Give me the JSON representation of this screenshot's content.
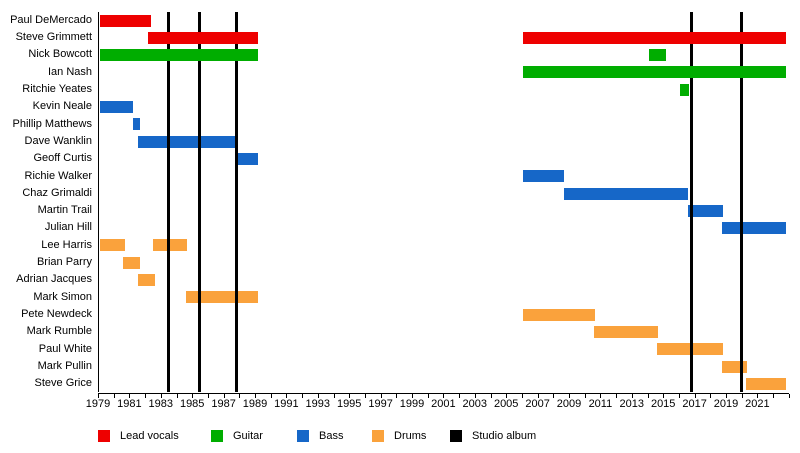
{
  "chart_data": {
    "type": "bar",
    "variant": "band-membership-timeline-gantt",
    "title": "",
    "background": "#ffffff",
    "x_axis": {
      "min": 1979,
      "max": 2023,
      "label_interval": 2,
      "minor_tick_interval": 1,
      "tick_labels": [
        "1979",
        "1981",
        "1983",
        "1985",
        "1987",
        "1989",
        "1991",
        "1993",
        "1995",
        "1997",
        "1999",
        "2001",
        "2003",
        "2005",
        "2007",
        "2009",
        "2011",
        "2013",
        "2015",
        "2017",
        "2019",
        "2021"
      ]
    },
    "legend": [
      {
        "label": "Lead vocals",
        "color": "#EE0000"
      },
      {
        "label": "Guitar",
        "color": "#00AD00"
      },
      {
        "label": "Bass",
        "color": "#1667C8"
      },
      {
        "label": "Drums",
        "color": "#FAA23C"
      },
      {
        "label": "Studio album",
        "color": "#000000"
      }
    ],
    "members": [
      {
        "name": "Paul DeMercado",
        "role": "Lead vocals",
        "periods": [
          [
            1979.15,
            1982.4
          ]
        ]
      },
      {
        "name": "Steve Grimmett",
        "role": "Lead vocals",
        "periods": [
          [
            1982.2,
            1989.2
          ],
          [
            2006.1,
            2022.8
          ]
        ]
      },
      {
        "name": "Nick Bowcott",
        "role": "Guitar",
        "periods": [
          [
            1979.1,
            1989.2
          ],
          [
            2014.1,
            2015.2
          ]
        ]
      },
      {
        "name": "Ian Nash",
        "role": "Guitar",
        "periods": [
          [
            2006.1,
            2022.8
          ]
        ]
      },
      {
        "name": "Ritchie Yeates",
        "role": "Guitar",
        "periods": [
          [
            2016.1,
            2016.65
          ]
        ]
      },
      {
        "name": "Kevin Neale",
        "role": "Bass",
        "periods": [
          [
            1979.1,
            1981.2
          ]
        ]
      },
      {
        "name": "Phillip Matthews",
        "role": "Bass",
        "periods": [
          [
            1981.2,
            1981.7
          ]
        ]
      },
      {
        "name": "Dave Wanklin",
        "role": "Bass",
        "periods": [
          [
            1981.55,
            1987.9
          ]
        ]
      },
      {
        "name": "Geoff Curtis",
        "role": "Bass",
        "periods": [
          [
            1987.9,
            1989.2
          ]
        ]
      },
      {
        "name": "Richie Walker",
        "role": "Bass",
        "periods": [
          [
            2006.1,
            2008.7
          ]
        ]
      },
      {
        "name": "Chaz Grimaldi",
        "role": "Bass",
        "periods": [
          [
            2008.65,
            2016.6
          ]
        ]
      },
      {
        "name": "Martin Trail",
        "role": "Bass",
        "periods": [
          [
            2016.6,
            2018.8
          ]
        ]
      },
      {
        "name": "Julian Hill",
        "role": "Bass",
        "periods": [
          [
            2018.75,
            2022.8
          ]
        ]
      },
      {
        "name": "Lee Harris",
        "role": "Drums",
        "periods": [
          [
            1979.1,
            1980.7
          ],
          [
            1982.5,
            1984.65
          ]
        ]
      },
      {
        "name": "Brian Parry",
        "role": "Drums",
        "periods": [
          [
            1980.6,
            1981.65
          ]
        ]
      },
      {
        "name": "Adrian Jacques",
        "role": "Drums",
        "periods": [
          [
            1981.55,
            1982.6
          ]
        ]
      },
      {
        "name": "Mark Simon",
        "role": "Drums",
        "periods": [
          [
            1984.6,
            1989.2
          ]
        ]
      },
      {
        "name": "Pete Newdeck",
        "role": "Drums",
        "periods": [
          [
            2006.1,
            2010.65
          ]
        ]
      },
      {
        "name": "Mark Rumble",
        "role": "Drums",
        "periods": [
          [
            2010.6,
            2014.65
          ]
        ]
      },
      {
        "name": "Paul White",
        "role": "Drums",
        "periods": [
          [
            2014.6,
            2018.8
          ]
        ]
      },
      {
        "name": "Mark Pullin",
        "role": "Drums",
        "periods": [
          [
            2018.75,
            2020.35
          ]
        ]
      },
      {
        "name": "Steve Grice",
        "role": "Drums",
        "periods": [
          [
            2020.3,
            2022.8
          ]
        ]
      }
    ],
    "studio_albums": [
      1983.5,
      1985.45,
      1987.8,
      2016.8,
      2020.0
    ]
  }
}
